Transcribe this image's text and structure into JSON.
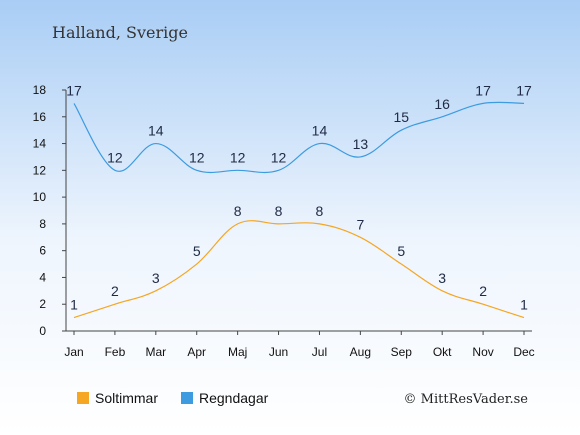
{
  "chart_data": {
    "type": "line",
    "title": "Halland, Sverige",
    "categories": [
      "Jan",
      "Feb",
      "Mar",
      "Apr",
      "Maj",
      "Jun",
      "Jul",
      "Aug",
      "Sep",
      "Okt",
      "Nov",
      "Dec"
    ],
    "series": [
      {
        "name": "Soltimmar",
        "values": [
          1,
          2,
          3,
          5,
          8,
          8,
          8,
          7,
          5,
          3,
          2,
          1
        ],
        "color": "#f5a623"
      },
      {
        "name": "Regndagar",
        "values": [
          17,
          12,
          14,
          12,
          12,
          12,
          14,
          13,
          15,
          16,
          17,
          17
        ],
        "color": "#3d9be0"
      }
    ],
    "yticks": [
      0,
      2,
      4,
      6,
      8,
      10,
      12,
      14,
      16,
      18
    ],
    "ylim": [
      0,
      18
    ],
    "xlabel": "",
    "ylabel": "",
    "grid": false,
    "legend_position": "bottom-left",
    "data_labels": true,
    "background": {
      "top": "#a9cdf5",
      "bottom": "#ffffff"
    }
  },
  "credit": "© MittResVader.se"
}
